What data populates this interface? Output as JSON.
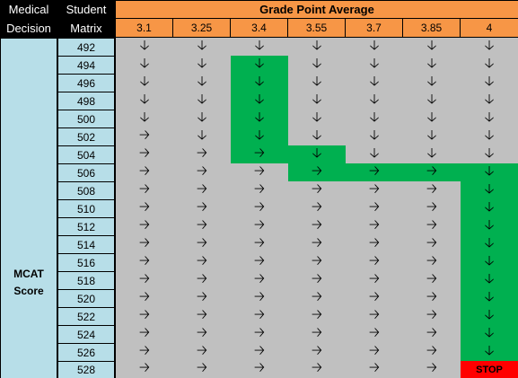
{
  "header": {
    "corner_top_left": "Medical",
    "corner_top_right": "Student",
    "corner_bottom_left": "Decision",
    "corner_bottom_right": "Matrix",
    "gpa_title": "Grade Point Average",
    "gpa_values": [
      "3.1",
      "3.25",
      "3.4",
      "3.55",
      "3.7",
      "3.85",
      "4"
    ]
  },
  "row_axis": {
    "label_line1": "MCAT",
    "label_line2": "Score"
  },
  "mcat_scores": [
    "492",
    "494",
    "496",
    "498",
    "500",
    "502",
    "504",
    "506",
    "508",
    "510",
    "512",
    "514",
    "516",
    "518",
    "520",
    "522",
    "524",
    "526",
    "528"
  ],
  "symbols": {
    "D": "🡣",
    "R": "🡢",
    "S": "STOP"
  },
  "grid": [
    [
      "D",
      "D",
      "D",
      "D",
      "D",
      "D",
      "D"
    ],
    [
      "D",
      "D",
      "D",
      "D",
      "D",
      "D",
      "D"
    ],
    [
      "D",
      "D",
      "D",
      "D",
      "D",
      "D",
      "D"
    ],
    [
      "D",
      "D",
      "D",
      "D",
      "D",
      "D",
      "D"
    ],
    [
      "D",
      "D",
      "D",
      "D",
      "D",
      "D",
      "D"
    ],
    [
      "R",
      "D",
      "D",
      "D",
      "D",
      "D",
      "D"
    ],
    [
      "R",
      "R",
      "R",
      "D",
      "D",
      "D",
      "D"
    ],
    [
      "R",
      "R",
      "R",
      "R",
      "R",
      "R",
      "D"
    ],
    [
      "R",
      "R",
      "R",
      "R",
      "R",
      "R",
      "D"
    ],
    [
      "R",
      "R",
      "R",
      "R",
      "R",
      "R",
      "D"
    ],
    [
      "R",
      "R",
      "R",
      "R",
      "R",
      "R",
      "D"
    ],
    [
      "R",
      "R",
      "R",
      "R",
      "R",
      "R",
      "D"
    ],
    [
      "R",
      "R",
      "R",
      "R",
      "R",
      "R",
      "D"
    ],
    [
      "R",
      "R",
      "R",
      "R",
      "R",
      "R",
      "D"
    ],
    [
      "R",
      "R",
      "R",
      "R",
      "R",
      "R",
      "D"
    ],
    [
      "R",
      "R",
      "R",
      "R",
      "R",
      "R",
      "D"
    ],
    [
      "R",
      "R",
      "R",
      "R",
      "R",
      "R",
      "D"
    ],
    [
      "R",
      "R",
      "R",
      "R",
      "R",
      "R",
      "D"
    ],
    [
      "R",
      "R",
      "R",
      "R",
      "R",
      "R",
      "S"
    ]
  ],
  "highlight": [
    [
      "",
      "",
      "",
      "",
      "",
      "",
      ""
    ],
    [
      "",
      "",
      "G",
      "",
      "",
      "",
      ""
    ],
    [
      "",
      "",
      "G",
      "",
      "",
      "",
      ""
    ],
    [
      "",
      "",
      "G",
      "",
      "",
      "",
      ""
    ],
    [
      "",
      "",
      "G",
      "",
      "",
      "",
      ""
    ],
    [
      "",
      "",
      "G",
      "",
      "",
      "",
      ""
    ],
    [
      "",
      "",
      "G",
      "G",
      "",
      "",
      ""
    ],
    [
      "",
      "",
      "",
      "G",
      "G",
      "G",
      "G"
    ],
    [
      "",
      "",
      "",
      "",
      "",
      "",
      "G"
    ],
    [
      "",
      "",
      "",
      "",
      "",
      "",
      "G"
    ],
    [
      "",
      "",
      "",
      "",
      "",
      "",
      "G"
    ],
    [
      "",
      "",
      "",
      "",
      "",
      "",
      "G"
    ],
    [
      "",
      "",
      "",
      "",
      "",
      "",
      "G"
    ],
    [
      "",
      "",
      "",
      "",
      "",
      "",
      "G"
    ],
    [
      "",
      "",
      "",
      "",
      "",
      "",
      "G"
    ],
    [
      "",
      "",
      "",
      "",
      "",
      "",
      "G"
    ],
    [
      "",
      "",
      "",
      "",
      "",
      "",
      "G"
    ],
    [
      "",
      "",
      "",
      "",
      "",
      "",
      "G"
    ],
    [
      "",
      "",
      "",
      "",
      "",
      "",
      "R"
    ]
  ],
  "colors": {
    "header_orange": "#f79646",
    "axis_blue": "#b7dee8",
    "grid_gray": "#c0c0c0",
    "path_green": "#00b050",
    "stop_red": "#ff0000"
  }
}
